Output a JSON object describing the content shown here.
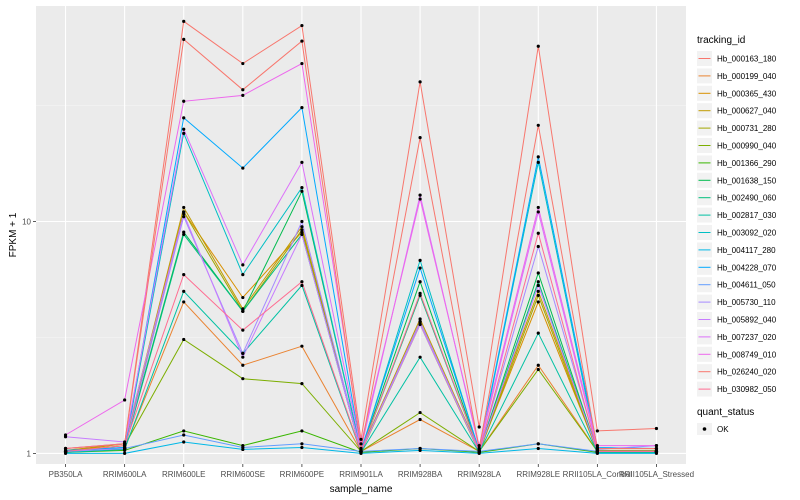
{
  "chart_data": {
    "type": "line",
    "xlabel": "sample_name",
    "ylabel": "FPKM + 1",
    "y_scale": "log",
    "y_ticks": [
      1,
      10
    ],
    "ylim": [
      0.9,
      85
    ],
    "categories": [
      "PB350LA",
      "RRIM600LA",
      "RRIM600LE",
      "RRIM600SE",
      "RRIM600PE",
      "RRIM901LA",
      "RRIM928BA",
      "RRIM928LA",
      "RRIM928LE",
      "RRII105LA_Control",
      "RRII105LA_Stressed"
    ],
    "legend": {
      "title": "tracking_id",
      "position": "right"
    },
    "points_legend": {
      "title": "quant_status",
      "label": "OK"
    },
    "series": [
      {
        "name": "Hb_000163_180",
        "color": "#F8766D",
        "values": [
          1.05,
          1.1,
          73,
          48,
          70,
          1.15,
          40,
          1.3,
          57,
          1.25,
          1.28
        ]
      },
      {
        "name": "Hb_000199_040",
        "color": "#EA8331",
        "values": [
          1.02,
          1.05,
          4.5,
          2.4,
          2.9,
          1.02,
          1.4,
          1.02,
          2.4,
          1.02,
          1.02
        ]
      },
      {
        "name": "Hb_000365_430",
        "color": "#D89000",
        "values": [
          1.02,
          1.1,
          11,
          4.7,
          9,
          1.02,
          3.7,
          1.02,
          4.5,
          1.02,
          1.02
        ]
      },
      {
        "name": "Hb_000627_040",
        "color": "#C09B00",
        "values": [
          1.03,
          1.1,
          11.5,
          4.2,
          9.5,
          1.03,
          3.8,
          1.03,
          5,
          1.03,
          1.03
        ]
      },
      {
        "name": "Hb_000731_280",
        "color": "#A3A500",
        "values": [
          1.01,
          1.05,
          11,
          4.1,
          9.2,
          1.01,
          3.6,
          1.01,
          4.8,
          1.01,
          1.01
        ]
      },
      {
        "name": "Hb_000990_040",
        "color": "#7CAE00",
        "values": [
          1.02,
          1.08,
          3.1,
          2.1,
          2.0,
          1.02,
          1.5,
          1.02,
          2.3,
          1.02,
          1.02
        ]
      },
      {
        "name": "Hb_001366_290",
        "color": "#39B600",
        "values": [
          1.01,
          1.03,
          1.25,
          1.08,
          1.25,
          1.01,
          1.05,
          1.01,
          1.1,
          1.01,
          1.01
        ]
      },
      {
        "name": "Hb_001638_150",
        "color": "#00BB4E",
        "values": [
          1.02,
          1.06,
          9,
          4.1,
          13.5,
          1.02,
          5.5,
          1.02,
          6,
          1.02,
          1.02
        ]
      },
      {
        "name": "Hb_002490_060",
        "color": "#00BF7D",
        "values": [
          1.02,
          1.05,
          8.8,
          4.1,
          8.8,
          1.02,
          4.8,
          1.02,
          5.5,
          1.02,
          1.02
        ]
      },
      {
        "name": "Hb_002817_030",
        "color": "#00C1A3",
        "values": [
          1.01,
          1.04,
          5,
          2.7,
          5.3,
          1.01,
          2.6,
          1.01,
          3.3,
          1.01,
          1.01
        ]
      },
      {
        "name": "Hb_003092_020",
        "color": "#00BFC4",
        "values": [
          1.02,
          1.05,
          24,
          5.9,
          14,
          1.02,
          6.8,
          1.02,
          18,
          1.02,
          1.02
        ]
      },
      {
        "name": "Hb_004117_280",
        "color": "#00B8E7",
        "values": [
          1.0,
          1.0,
          1.12,
          1.04,
          1.06,
          1.0,
          1.03,
          1.0,
          1.05,
          1.0,
          1.0
        ]
      },
      {
        "name": "Hb_004228_070",
        "color": "#00A9FF",
        "values": [
          1.03,
          1.06,
          28,
          17,
          31,
          1.03,
          6.3,
          1.03,
          19,
          1.06,
          1.05
        ]
      },
      {
        "name": "Hb_004611_050",
        "color": "#619CFF",
        "values": [
          1.02,
          1.05,
          1.2,
          1.06,
          1.1,
          1.02,
          1.05,
          1.02,
          1.1,
          1.02,
          1.02
        ]
      },
      {
        "name": "Hb_005730_110",
        "color": "#A58AFF",
        "values": [
          1.02,
          1.05,
          10.5,
          2.7,
          10,
          1.02,
          3.7,
          1.02,
          7.8,
          1.04,
          1.08
        ]
      },
      {
        "name": "Hb_005892_040",
        "color": "#C77CFF",
        "values": [
          1.18,
          1.12,
          10.8,
          2.6,
          8.8,
          1.02,
          3.6,
          1.02,
          5.3,
          1.02,
          1.02
        ]
      },
      {
        "name": "Hb_007237_020",
        "color": "#DC71FA",
        "values": [
          1.05,
          1.1,
          25,
          6.5,
          18,
          1.05,
          13,
          1.05,
          11,
          1.05,
          1.05
        ]
      },
      {
        "name": "Hb_008749_010",
        "color": "#ED68ED",
        "values": [
          1.2,
          1.7,
          33,
          35,
          48,
          1.1,
          12.5,
          1.08,
          11.5,
          1.08,
          1.08
        ]
      },
      {
        "name": "Hb_026240_020",
        "color": "#F8766D",
        "values": [
          1.05,
          1.1,
          61,
          37,
          60,
          1.05,
          23,
          1.05,
          26,
          1.05,
          1.05
        ]
      },
      {
        "name": "Hb_030982_050",
        "color": "#FF6C91",
        "values": [
          1.02,
          1.08,
          5.9,
          3.4,
          5.5,
          1.02,
          4.9,
          1.02,
          8.9,
          1.02,
          1.02
        ]
      }
    ]
  }
}
